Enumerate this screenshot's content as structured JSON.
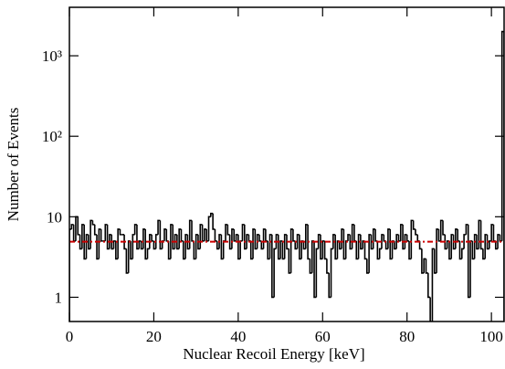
{
  "chart_data": {
    "type": "histogram",
    "x_label": "Nuclear Recoil Energy [keV]",
    "y_label": "Number of Events",
    "log_y": true,
    "color": "#000000",
    "xlim": [
      0,
      103
    ],
    "ylim": [
      0.5,
      4000
    ],
    "xticks": [
      0,
      20,
      40,
      60,
      80,
      100
    ],
    "yticks": [
      1,
      10,
      {
        "value": 100,
        "label": "10²"
      },
      {
        "value": 1000,
        "label": "10³"
      }
    ],
    "reference_line": {
      "value": 4.9,
      "color": "#cc0000"
    },
    "bins": [
      0,
      0.5,
      1,
      1.5,
      2,
      2.5,
      3,
      3.5,
      4,
      4.5,
      5,
      5.5,
      6,
      6.5,
      7,
      7.5,
      8,
      8.5,
      9,
      9.5,
      10,
      10.5,
      11,
      11.5,
      12,
      12.5,
      13,
      13.5,
      14,
      14.5,
      15,
      15.5,
      16,
      16.5,
      17,
      17.5,
      18,
      18.5,
      19,
      19.5,
      20,
      20.5,
      21,
      21.5,
      22,
      22.5,
      23,
      23.5,
      24,
      24.5,
      25,
      25.5,
      26,
      26.5,
      27,
      27.5,
      28,
      28.5,
      29,
      29.5,
      30,
      30.5,
      31,
      31.5,
      32,
      32.5,
      33,
      33.5,
      34,
      34.5,
      35,
      35.5,
      36,
      36.5,
      37,
      37.5,
      38,
      38.5,
      39,
      39.5,
      40,
      40.5,
      41,
      41.5,
      42,
      42.5,
      43,
      43.5,
      44,
      44.5,
      45,
      45.5,
      46,
      46.5,
      47,
      47.5,
      48,
      48.5,
      49,
      49.5,
      50,
      50.5,
      51,
      51.5,
      52,
      52.5,
      53,
      53.5,
      54,
      54.5,
      55,
      55.5,
      56,
      56.5,
      57,
      57.5,
      58,
      58.5,
      59,
      59.5,
      60,
      60.5,
      61,
      61.5,
      62,
      62.5,
      63,
      63.5,
      64,
      64.5,
      65,
      65.5,
      66,
      66.5,
      67,
      67.5,
      68,
      68.5,
      69,
      69.5,
      70,
      70.5,
      71,
      71.5,
      72,
      72.5,
      73,
      73.5,
      74,
      74.5,
      75,
      75.5,
      76,
      76.5,
      77,
      77.5,
      78,
      78.5,
      79,
      79.5,
      80,
      80.5,
      81,
      81.5,
      82,
      82.5,
      83,
      83.5,
      84,
      84.5,
      85,
      85.5,
      86,
      86.5,
      87,
      87.5,
      88,
      88.5,
      89,
      89.5,
      90,
      90.5,
      91,
      91.5,
      92,
      92.5,
      93,
      93.5,
      94,
      94.5,
      95,
      95.5,
      96,
      96.5,
      97,
      97.5,
      98,
      98.5,
      99,
      99.5,
      100,
      100.5,
      101,
      101.5,
      102,
      102.5,
      103
    ],
    "counts": [
      7,
      8,
      5,
      10,
      6,
      4,
      8,
      3,
      6,
      4,
      9,
      8,
      6,
      3,
      7,
      5,
      5,
      8,
      4,
      6,
      4,
      5,
      3,
      7,
      6,
      6,
      4,
      2,
      5,
      3,
      6,
      8,
      4,
      5,
      4,
      7,
      3,
      4,
      6,
      5,
      4,
      6,
      9,
      4,
      5,
      7,
      5,
      3,
      8,
      4,
      6,
      4,
      7,
      5,
      3,
      6,
      4,
      9,
      5,
      3,
      6,
      4,
      8,
      5,
      7,
      5,
      10,
      11,
      7,
      5,
      4,
      6,
      3,
      5,
      8,
      6,
      4,
      7,
      5,
      6,
      3,
      5,
      8,
      4,
      6,
      5,
      3,
      7,
      4,
      6,
      5,
      4,
      7,
      5,
      3,
      6,
      1,
      4,
      6,
      3,
      5,
      3,
      6,
      4,
      2,
      7,
      5,
      4,
      6,
      3,
      5,
      4,
      8,
      3,
      2,
      5,
      1,
      4,
      6,
      3,
      5,
      3,
      2,
      1,
      4,
      6,
      3,
      5,
      4,
      7,
      3,
      5,
      6,
      4,
      8,
      5,
      3,
      6,
      4,
      5,
      3,
      2,
      6,
      4,
      7,
      5,
      3,
      4,
      6,
      5,
      4,
      7,
      3,
      5,
      4,
      6,
      5,
      8,
      4,
      6,
      5,
      3,
      9,
      7,
      6,
      5,
      4,
      2,
      3,
      2,
      1,
      0,
      4,
      2,
      7,
      5,
      9,
      6,
      4,
      5,
      3,
      6,
      4,
      7,
      5,
      3,
      4,
      6,
      8,
      1,
      5,
      3,
      6,
      4,
      9,
      4,
      3,
      6,
      4,
      5,
      8,
      5,
      4,
      6,
      5,
      2000
    ]
  }
}
